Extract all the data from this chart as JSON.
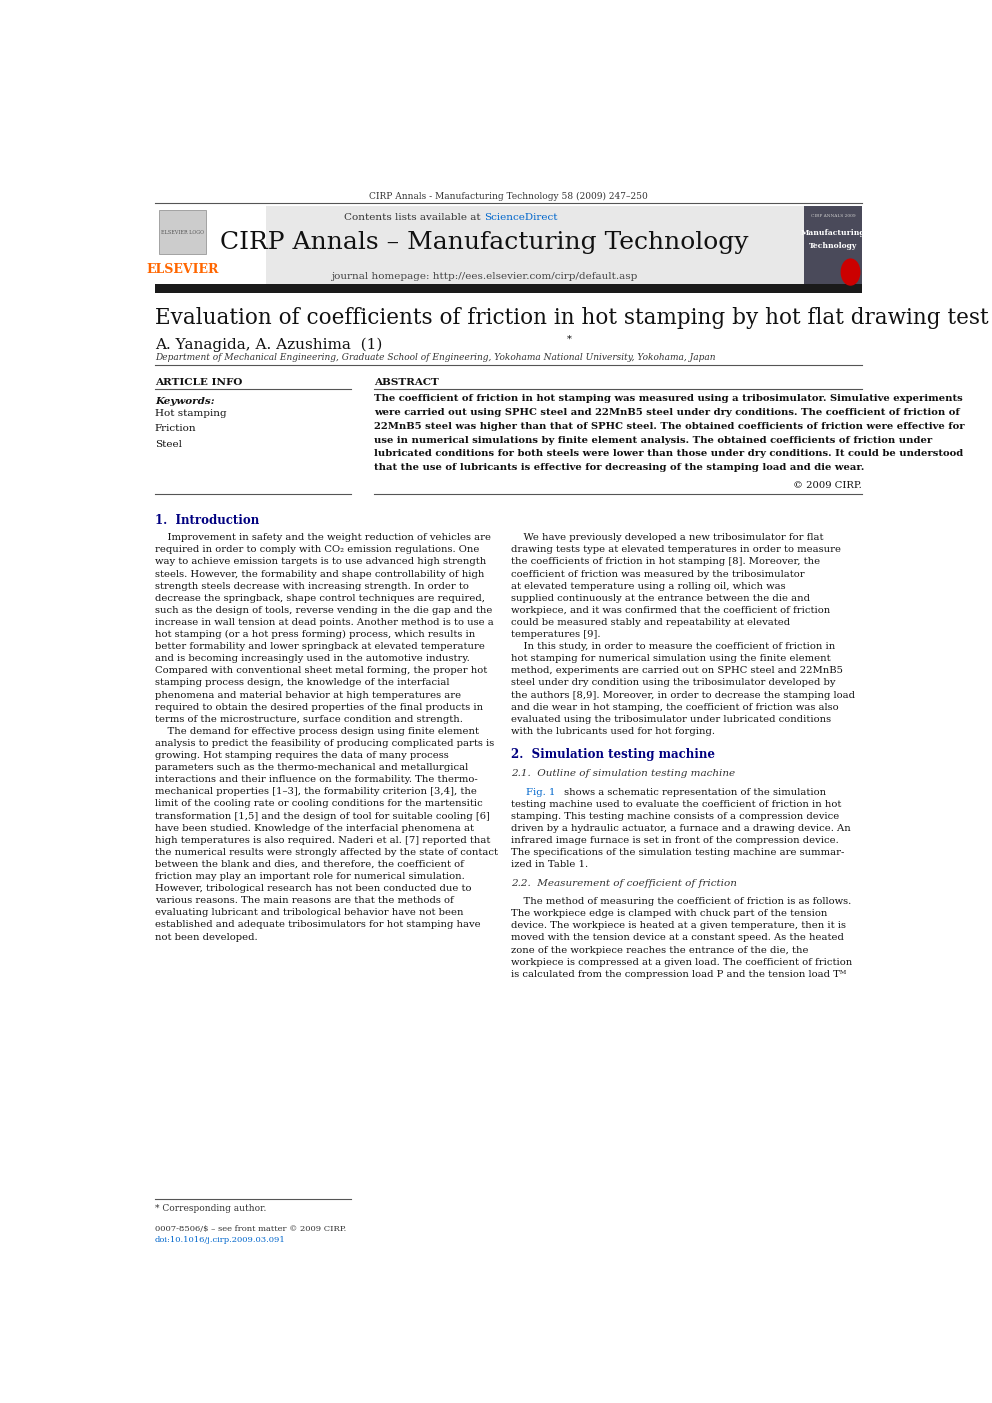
{
  "page_width": 9.92,
  "page_height": 14.03,
  "bg_color": "#ffffff",
  "header_journal_line": "CIRP Annals - Manufacturing Technology 58 (2009) 247–250",
  "header_bg": "#e8e8e8",
  "journal_title": "CIRP Annals – Manufacturing Technology",
  "journal_homepage": "journal homepage: http://ees.elsevier.com/cirp/default.asp",
  "contents_line": "Contents lists available at ScienceDirect",
  "paper_title": "Evaluation of coefficients of friction in hot stamping by hot flat drawing test",
  "authors": "A. Yanagida, A. Azushima  (1)*",
  "affiliation": "Department of Mechanical Engineering, Graduate School of Engineering, Yokohama National University, Yokohama, Japan",
  "article_info_label": "ARTICLE INFO",
  "abstract_label": "ABSTRACT",
  "keywords_label": "Keywords:",
  "keywords": [
    "Hot stamping",
    "Friction",
    "Steel"
  ],
  "abstract_lines": [
    "The coefficient of friction in hot stamping was measured using a tribosimulator. Simulative experiments",
    "were carried out using SPHC steel and 22MnB5 steel under dry conditions. The coefficient of friction of",
    "22MnB5 steel was higher than that of SPHC steel. The obtained coefficients of friction were effective for",
    "use in numerical simulations by finite element analysis. The obtained coefficients of friction under",
    "lubricated conditions for both steels were lower than those under dry conditions. It could be understood",
    "that the use of lubricants is effective for decreasing of the stamping load and die wear."
  ],
  "copyright": "© 2009 CIRP.",
  "section1_title": "1.  Introduction",
  "intro_left_lines": [
    "    Improvement in safety and the weight reduction of vehicles are",
    "required in order to comply with CO₂ emission regulations. One",
    "way to achieve emission targets is to use advanced high strength",
    "steels. However, the formability and shape controllability of high",
    "strength steels decrease with increasing strength. In order to",
    "decrease the springback, shape control techniques are required,",
    "such as the design of tools, reverse vending in the die gap and the",
    "increase in wall tension at dead points. Another method is to use a",
    "hot stamping (or a hot press forming) process, which results in",
    "better formability and lower springback at elevated temperature",
    "and is becoming increasingly used in the automotive industry.",
    "Compared with conventional sheet metal forming, the proper hot",
    "stamping process design, the knowledge of the interfacial",
    "phenomena and material behavior at high temperatures are",
    "required to obtain the desired properties of the final products in",
    "terms of the microstructure, surface condition and strength.",
    "    The demand for effective process design using finite element",
    "analysis to predict the feasibility of producing complicated parts is",
    "growing. Hot stamping requires the data of many process",
    "parameters such as the thermo-mechanical and metallurgical",
    "interactions and their influence on the formability. The thermo-",
    "mechanical properties [1–3], the formability criterion [3,4], the",
    "limit of the cooling rate or cooling conditions for the martensitic",
    "transformation [1,5] and the design of tool for suitable cooling [6]",
    "have been studied. Knowledge of the interfacial phenomena at",
    "high temperatures is also required. Naderi et al. [7] reported that",
    "the numerical results were strongly affected by the state of contact",
    "between the blank and dies, and therefore, the coefficient of",
    "friction may play an important role for numerical simulation.",
    "However, tribological research has not been conducted due to",
    "various reasons. The main reasons are that the methods of",
    "evaluating lubricant and tribological behavior have not been",
    "established and adequate tribosimulators for hot stamping have",
    "not been developed."
  ],
  "intro_right_lines": [
    "    We have previously developed a new tribosimulator for flat",
    "drawing tests type at elevated temperatures in order to measure",
    "the coefficients of friction in hot stamping [8]. Moreover, the",
    "coefficient of friction was measured by the tribosimulator",
    "at elevated temperature using a rolling oil, which was",
    "supplied continuously at the entrance between the die and",
    "workpiece, and it was confirmed that the coefficient of friction",
    "could be measured stably and repeatability at elevated",
    "temperatures [9].",
    "    In this study, in order to measure the coefficient of friction in",
    "hot stamping for numerical simulation using the finite element",
    "method, experiments are carried out on SPHC steel and 22MnB5",
    "steel under dry condition using the tribosimulator developed by",
    "the authors [8,9]. Moreover, in order to decrease the stamping load",
    "and die wear in hot stamping, the coefficient of friction was also",
    "evaluated using the tribosimulator under lubricated conditions",
    "with the lubricants used for hot forging."
  ],
  "section2_title": "2.  Simulation testing machine",
  "section2_1_title": "2.1.  Outline of simulation testing machine",
  "sec2_1_lines": [
    "    [Fig1] shows a schematic representation of the simulation",
    "testing machine used to evaluate the coefficient of friction in hot",
    "stamping. This testing machine consists of a compression device",
    "driven by a hydraulic actuator, a furnace and a drawing device. An",
    "infrared image furnace is set in front of the compression device.",
    "The specifications of the simulation testing machine are summar-",
    "ized in Table 1."
  ],
  "section2_2_title": "2.2.  Measurement of coefficient of friction",
  "sec2_2_lines": [
    "    The method of measuring the coefficient of friction is as follows.",
    "The workpiece edge is clamped with chuck part of the tension",
    "device. The workpiece is heated at a given temperature, then it is",
    "moved with the tension device at a constant speed. As the heated",
    "zone of the workpiece reaches the entrance of the die, the",
    "workpiece is compressed at a given load. The coefficient of friction",
    "is calculated from the compression load P and the tension load Tᴹ"
  ],
  "footer_corresponding": "* Corresponding author.",
  "footer_issn": "0007-8506/$ – see front matter © 2009 CIRP.",
  "footer_doi": "doi:10.1016/j.cirp.2009.03.091",
  "elsevier_color": "#ff6600",
  "sciencedirect_color": "#0066cc",
  "link_color": "#0066cc",
  "section_title_color": "#000080"
}
